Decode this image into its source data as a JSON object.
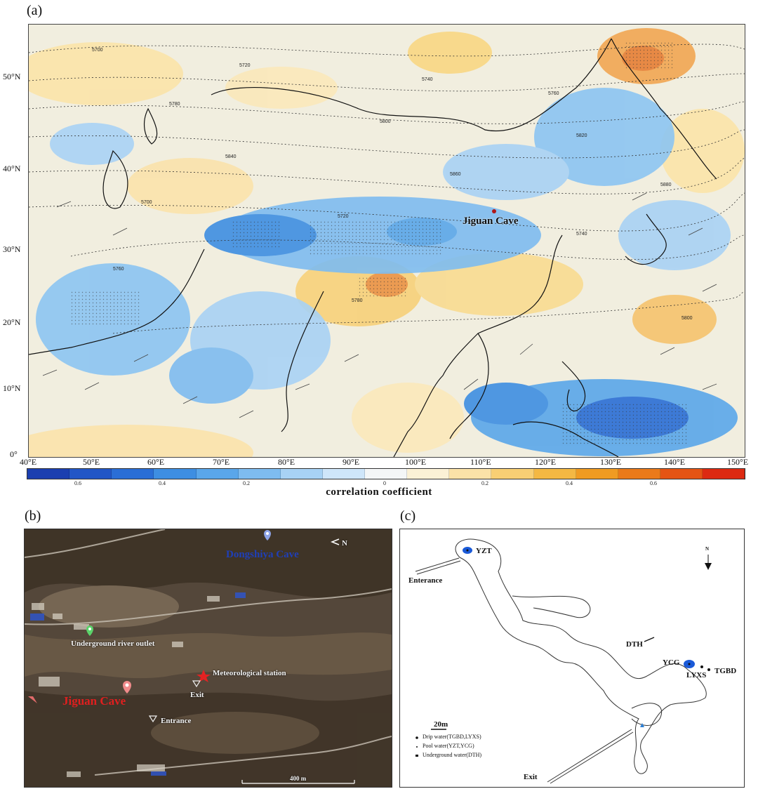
{
  "panels": {
    "a": {
      "label": "(a)"
    },
    "b": {
      "label": "(b)"
    },
    "c": {
      "label": "(c)"
    }
  },
  "map_a": {
    "lat_ticks": [
      "50°N",
      "40°N",
      "30°N",
      "20°N",
      "10°N",
      "0°"
    ],
    "lon_ticks": [
      "40°E",
      "50°E",
      "60°E",
      "70°E",
      "80°E",
      "90°E",
      "100°E",
      "110°E",
      "120°E",
      "130°E",
      "140°E",
      "150°E"
    ],
    "site_label": "Jiguan Cave",
    "contour_labels": [
      "5700",
      "5720",
      "5740",
      "5760",
      "5780",
      "5800",
      "5820",
      "5840",
      "5860",
      "5880"
    ],
    "colorbar": {
      "title": "correlation coefficient",
      "tick_labels": [
        "0.6",
        "0.4",
        "0.2",
        "0",
        "0.2",
        "0.4",
        "0.6"
      ],
      "colors": [
        "#1b3fb0",
        "#2256c6",
        "#2a6ed6",
        "#3e8ee2",
        "#5aa6ea",
        "#7ebcf0",
        "#a8d2f5",
        "#cfe6fa",
        "#f4f6f7",
        "#fbf1d6",
        "#fbe2a8",
        "#f8cf74",
        "#f4b843",
        "#f09b22",
        "#ea7a1a",
        "#e55414",
        "#dd2a12"
      ]
    }
  },
  "map_b": {
    "labels": {
      "dongshiya": "Dongshiya Cave",
      "river": "Underground river outlet",
      "met": "Meteorological station",
      "jiguan": "Jiguan Cave",
      "exit": "Exit",
      "entrance": "Entrance",
      "north": "N",
      "scale": "400 m"
    }
  },
  "map_c": {
    "labels": {
      "yzt": "YZT",
      "entrance": "Enterance",
      "dth": "DTH",
      "ycg": "YCG",
      "lyxs": "LYXS",
      "tgbd": "TGBD",
      "exit": "Exit",
      "north": "N",
      "scale": "20m"
    },
    "legend": [
      "Drip water(TGBD,LYXS)",
      "Pool water(YZT,YCG)",
      "Underground water(DTH)"
    ]
  }
}
